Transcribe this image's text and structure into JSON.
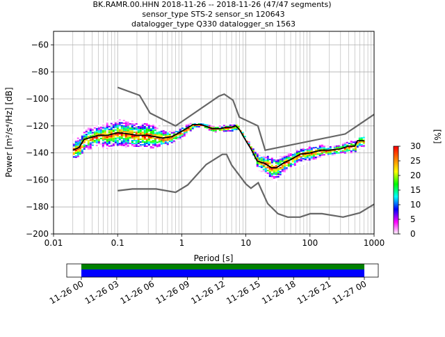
{
  "chart_data": {
    "type": "heatmap",
    "title_lines": [
      "BK.RAMR.00.HHN   2018-11-26 -- 2018-11-26  (47/47 segments)",
      "sensor_type STS-2 sensor_sn 120643",
      "datalogger_type Q330 datalogger_sn 1563"
    ],
    "xlabel": "Period [s]",
    "ylabel": "Power [m²/s⁴/Hz] [dB]",
    "x_scale": "log",
    "xlim": [
      0.01,
      1000
    ],
    "ylim": [
      -200,
      -50
    ],
    "x_ticks": [
      {
        "value": 0.01,
        "label": "0.01"
      },
      {
        "value": 0.1,
        "label": "0.1"
      },
      {
        "value": 1,
        "label": "1"
      },
      {
        "value": 10,
        "label": "10"
      },
      {
        "value": 100,
        "label": "100"
      },
      {
        "value": 1000,
        "label": "1000"
      }
    ],
    "y_ticks": [
      {
        "value": -60,
        "label": "−60"
      },
      {
        "value": -80,
        "label": "−80"
      },
      {
        "value": -100,
        "label": "−100"
      },
      {
        "value": -120,
        "label": "−120"
      },
      {
        "value": -140,
        "label": "−140"
      },
      {
        "value": -160,
        "label": "−160"
      },
      {
        "value": -180,
        "label": "−180"
      },
      {
        "value": -200,
        "label": "−200"
      }
    ],
    "grid": true,
    "colorbar": {
      "label": "[%]",
      "range": [
        0,
        30
      ],
      "ticks": [
        {
          "value": 0,
          "label": "0"
        },
        {
          "value": 5,
          "label": "5"
        },
        {
          "value": 10,
          "label": "10"
        },
        {
          "value": 15,
          "label": "15"
        },
        {
          "value": 20,
          "label": "20"
        },
        {
          "value": 25,
          "label": "25"
        },
        {
          "value": 30,
          "label": "30"
        }
      ],
      "colors": [
        "#ffffff",
        "#ff00ff",
        "#0000ff",
        "#00ffff",
        "#00ff00",
        "#ffff00",
        "#ff8000",
        "#ff0000"
      ]
    },
    "mode_curve": {
      "color": "#000000",
      "points": [
        [
          0.02,
          -138
        ],
        [
          0.025,
          -136
        ],
        [
          0.03,
          -130
        ],
        [
          0.05,
          -127
        ],
        [
          0.07,
          -127
        ],
        [
          0.1,
          -125
        ],
        [
          0.15,
          -126
        ],
        [
          0.2,
          -127
        ],
        [
          0.3,
          -127
        ],
        [
          0.5,
          -129
        ],
        [
          0.7,
          -128
        ],
        [
          1,
          -124
        ],
        [
          1.5,
          -119
        ],
        [
          2,
          -119
        ],
        [
          3,
          -122
        ],
        [
          4,
          -122
        ],
        [
          5,
          -121
        ],
        [
          6,
          -121
        ],
        [
          7,
          -120
        ],
        [
          8,
          -123
        ],
        [
          10,
          -131
        ],
        [
          12,
          -137
        ],
        [
          15,
          -146
        ],
        [
          20,
          -148
        ],
        [
          25,
          -151
        ],
        [
          30,
          -151
        ],
        [
          40,
          -147
        ],
        [
          50,
          -145
        ],
        [
          70,
          -141
        ],
        [
          100,
          -140
        ],
        [
          150,
          -138
        ],
        [
          200,
          -138
        ],
        [
          300,
          -137
        ],
        [
          400,
          -135
        ],
        [
          500,
          -135
        ],
        [
          550,
          -131
        ],
        [
          700,
          -131
        ]
      ]
    },
    "noise_models": [
      {
        "name": "upper",
        "color": "#666666",
        "points": [
          [
            0.1,
            -91.5
          ],
          [
            0.22,
            -97.4
          ],
          [
            0.32,
            -110.5
          ],
          [
            0.8,
            -120
          ],
          [
            3.8,
            -98
          ],
          [
            4.6,
            -96.5
          ],
          [
            6.3,
            -101
          ],
          [
            7.9,
            -113.5
          ],
          [
            15.4,
            -120
          ],
          [
            20,
            -138
          ],
          [
            354.8,
            -126
          ],
          [
            1000,
            -111.5
          ]
        ]
      },
      {
        "name": "lower",
        "color": "#666666",
        "points": [
          [
            0.1,
            -168
          ],
          [
            0.17,
            -166.7
          ],
          [
            0.4,
            -166.7
          ],
          [
            0.8,
            -169.2
          ],
          [
            1.24,
            -163.7
          ],
          [
            2.4,
            -148.6
          ],
          [
            4.3,
            -141.1
          ],
          [
            5,
            -141.1
          ],
          [
            6,
            -149
          ],
          [
            10,
            -163
          ],
          [
            12,
            -166.2
          ],
          [
            15.6,
            -162.1
          ],
          [
            21.9,
            -177.5
          ],
          [
            31.6,
            -185
          ],
          [
            45,
            -187.5
          ],
          [
            70,
            -187.5
          ],
          [
            101,
            -185
          ],
          [
            154,
            -185
          ],
          [
            328,
            -187.5
          ],
          [
            600,
            -184.4
          ],
          [
            1000,
            -178
          ]
        ]
      }
    ],
    "psd_cloud": {
      "x_range": [
        0.02,
        700
      ],
      "upper": [
        [
          0.02,
          -126
        ],
        [
          0.03,
          -122
        ],
        [
          0.05,
          -119
        ],
        [
          0.07,
          -116
        ],
        [
          0.1,
          -115
        ],
        [
          0.15,
          -116
        ],
        [
          0.3,
          -116
        ],
        [
          0.5,
          -120
        ],
        [
          0.7,
          -124
        ],
        [
          1,
          -120
        ],
        [
          1.5,
          -117
        ],
        [
          2,
          -117
        ],
        [
          3,
          -119
        ],
        [
          5,
          -118
        ],
        [
          7,
          -118
        ],
        [
          9,
          -122
        ],
        [
          12,
          -132
        ],
        [
          15,
          -140
        ],
        [
          20,
          -142
        ],
        [
          30,
          -143
        ],
        [
          50,
          -139
        ],
        [
          100,
          -135
        ],
        [
          200,
          -133
        ],
        [
          300,
          -132
        ],
        [
          500,
          -129
        ],
        [
          700,
          -128
        ]
      ],
      "lower": [
        [
          0.02,
          -144
        ],
        [
          0.03,
          -139
        ],
        [
          0.05,
          -135
        ],
        [
          0.07,
          -137
        ],
        [
          0.1,
          -137
        ],
        [
          0.15,
          -137
        ],
        [
          0.3,
          -137
        ],
        [
          0.5,
          -134
        ],
        [
          0.7,
          -133
        ],
        [
          1,
          -129
        ],
        [
          1.5,
          -122
        ],
        [
          2,
          -121
        ],
        [
          3,
          -124
        ],
        [
          5,
          -124
        ],
        [
          7,
          -124
        ],
        [
          9,
          -127
        ],
        [
          12,
          -138
        ],
        [
          15,
          -152
        ],
        [
          20,
          -158
        ],
        [
          25,
          -162
        ],
        [
          30,
          -160
        ],
        [
          50,
          -151
        ],
        [
          100,
          -146
        ],
        [
          200,
          -142
        ],
        [
          300,
          -140
        ],
        [
          500,
          -139
        ],
        [
          700,
          -137
        ]
      ]
    },
    "timeline": {
      "ticks": [
        "11-26 00",
        "11-26 03",
        "11-26 06",
        "11-26 09",
        "11-26 12",
        "11-26 15",
        "11-26 18",
        "11-26 21",
        "11-27 00"
      ],
      "coverage_color": "#0000ff",
      "data_color": "#008000"
    }
  }
}
